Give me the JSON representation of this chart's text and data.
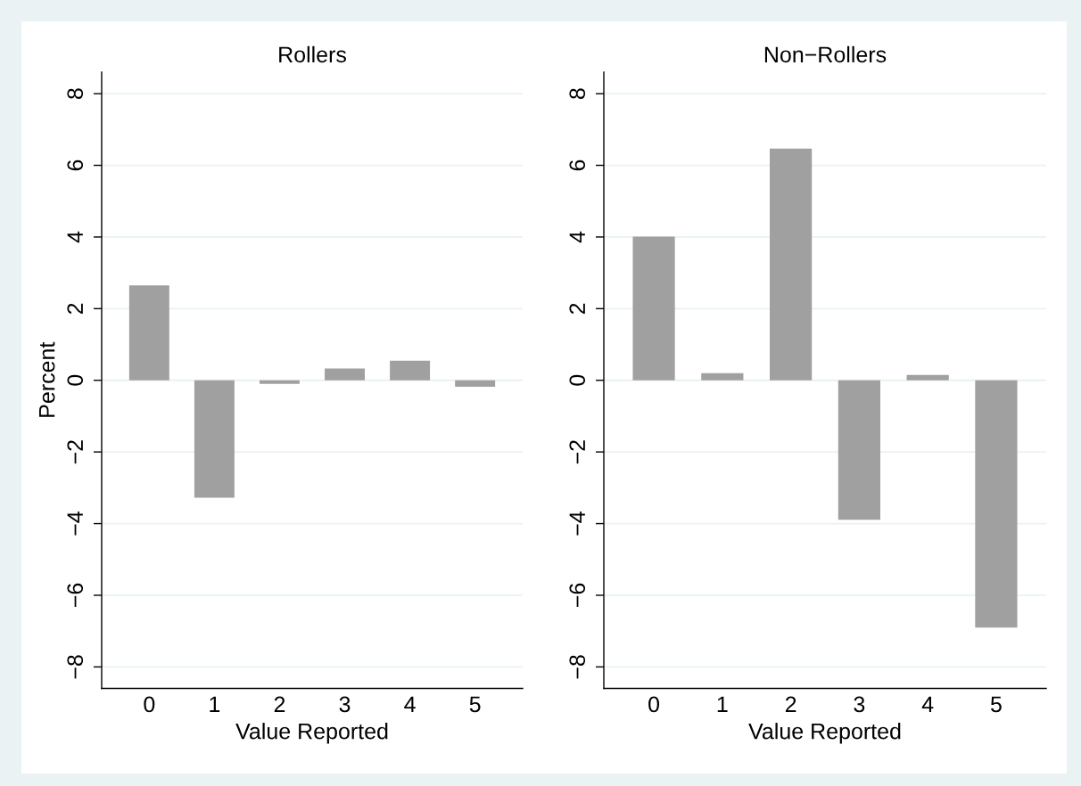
{
  "chart_data": [
    {
      "type": "bar",
      "title": "Rollers",
      "xlabel": "Value Reported",
      "ylabel": "Percent",
      "categories": [
        "0",
        "1",
        "2",
        "3",
        "4",
        "5"
      ],
      "values": [
        2.65,
        -3.28,
        -0.1,
        0.33,
        0.55,
        -0.18
      ],
      "color": "#a0a0a0",
      "ylim": [
        -8.6,
        8.6
      ],
      "yticks": [
        {
          "value": -8,
          "label": "−8"
        },
        {
          "value": -6,
          "label": "−6"
        },
        {
          "value": -4,
          "label": "−4"
        },
        {
          "value": -2,
          "label": "−2"
        },
        0,
        2,
        4,
        6,
        8
      ],
      "grid": "y"
    },
    {
      "type": "bar",
      "title": "Non−Rollers",
      "xlabel": "Value Reported",
      "categories": [
        "0",
        "1",
        "2",
        "3",
        "4",
        "5"
      ],
      "values": [
        4.01,
        0.2,
        6.47,
        -3.89,
        0.15,
        -6.9
      ],
      "color": "#a0a0a0",
      "ylim": [
        -8.6,
        8.6
      ],
      "yticks": [
        {
          "value": -8,
          "label": "−8"
        },
        {
          "value": -6,
          "label": "−6"
        },
        {
          "value": -4,
          "label": "−4"
        },
        {
          "value": -2,
          "label": "−2"
        },
        0,
        2,
        4,
        6,
        8
      ],
      "grid": "y"
    }
  ]
}
